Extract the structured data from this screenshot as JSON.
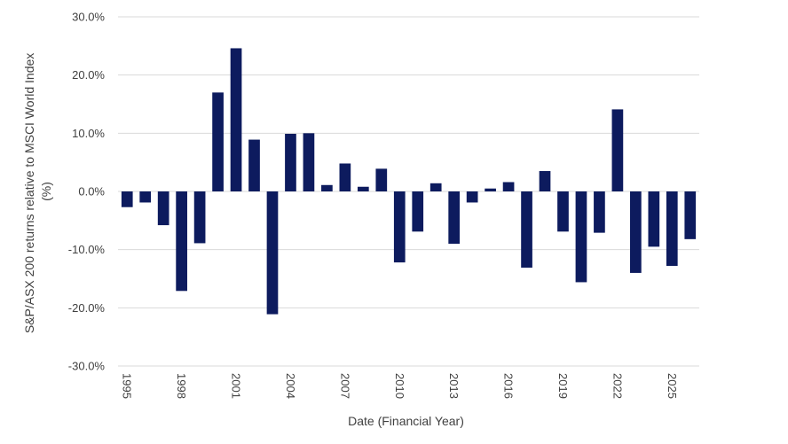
{
  "chart_data": {
    "type": "bar",
    "xlabel": "Date (Financial Year)",
    "ylabel_lines": [
      "S&P/ASX 200 returns relative to MSCI World Index",
      "(%)"
    ],
    "ylim": [
      -30,
      30
    ],
    "y_ticks": [
      30,
      20,
      10,
      0,
      -10,
      -20,
      -30
    ],
    "y_tick_labels": [
      "30.0%",
      "20.0%",
      "10.0%",
      "0.0%",
      "-10.0%",
      "-20.0%",
      "-30.0%"
    ],
    "x_tick_labels": [
      "1995",
      "1998",
      "2001",
      "2004",
      "2007",
      "2010",
      "2013",
      "2016",
      "2019",
      "2022",
      "2025"
    ],
    "x_tick_years": [
      1995,
      1998,
      2001,
      2004,
      2007,
      2010,
      2013,
      2016,
      2019,
      2022,
      2025
    ],
    "categories": [
      1995,
      1996,
      1997,
      1998,
      1999,
      2000,
      2001,
      2002,
      2003,
      2004,
      2005,
      2006,
      2007,
      2008,
      2009,
      2010,
      2011,
      2012,
      2013,
      2014,
      2015,
      2016,
      2017,
      2018,
      2019,
      2020,
      2021,
      2022,
      2023,
      2024,
      2025,
      2026
    ],
    "values": [
      -2.7,
      -1.9,
      -5.8,
      -17.1,
      -8.9,
      17.0,
      24.6,
      8.9,
      -21.1,
      9.9,
      10.0,
      1.1,
      4.8,
      0.8,
      3.9,
      -12.2,
      -6.9,
      1.4,
      -9.0,
      -1.9,
      0.5,
      1.6,
      -13.1,
      3.5,
      -6.9,
      -15.6,
      -7.1,
      14.1,
      -14.0,
      -9.5,
      -12.8,
      -8.2
    ],
    "grid": true,
    "bar_color": "#0d1b5e",
    "grid_color": "#d9d9d9",
    "text_color": "#404040"
  }
}
